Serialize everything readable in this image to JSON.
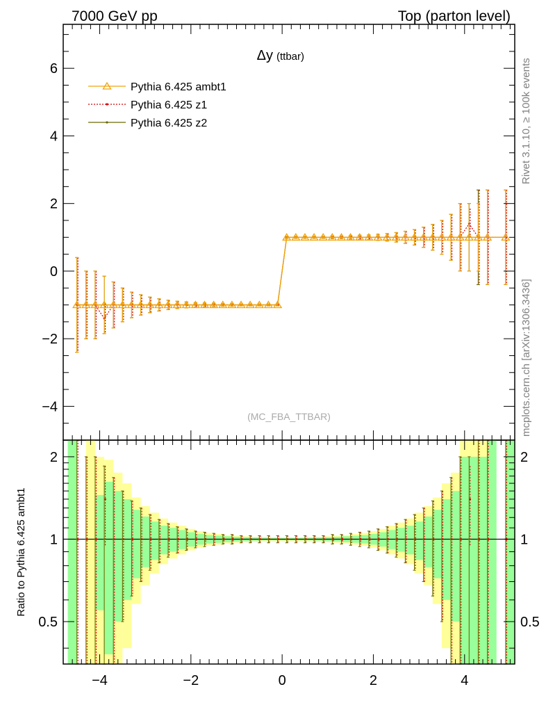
{
  "header": {
    "left": "7000 GeV pp",
    "right": "Top (parton level)"
  },
  "side": {
    "rivet": "Rivet 3.1.10, ≥ 100k events",
    "mcplots": "mcplots.cern.ch [arXiv:1306.3436]"
  },
  "chart_data": [
    {
      "type": "line",
      "title": "Δy",
      "subtitle": "(ttbar)",
      "analysis": "(MC_FBA_TTBAR)",
      "xlabel": "",
      "ylabel": "",
      "xlim": [
        -4.8,
        5.1
      ],
      "ylim": [
        -5.0,
        7.3
      ],
      "xticks": [
        -4,
        -2,
        0,
        2,
        4
      ],
      "yticks": [
        -4,
        -2,
        0,
        2,
        4,
        6
      ],
      "ytick_labels": [
        "−4",
        "−2",
        "0",
        "2",
        "4",
        "6"
      ],
      "legend_position": "top-left",
      "x": [
        -4.5,
        -4.3,
        -4.1,
        -3.9,
        -3.7,
        -3.5,
        -3.3,
        -3.1,
        -2.9,
        -2.7,
        -2.5,
        -2.3,
        -2.1,
        -1.9,
        -1.7,
        -1.5,
        -1.3,
        -1.1,
        -0.9,
        -0.7,
        -0.5,
        -0.3,
        -0.1,
        0.1,
        0.3,
        0.5,
        0.7,
        0.9,
        1.1,
        1.3,
        1.5,
        1.7,
        1.9,
        2.1,
        2.3,
        2.5,
        2.7,
        2.9,
        3.1,
        3.3,
        3.5,
        3.7,
        3.9,
        4.1,
        4.3,
        4.5,
        4.9
      ],
      "series": [
        {
          "name": "Pythia 6.425 ambt1",
          "color": "#f0a30a",
          "marker": "triangle",
          "values": [
            -1,
            -1,
            -1,
            -1,
            -1,
            -1,
            -1,
            -1,
            -1,
            -1,
            -1,
            -1,
            -1,
            -1,
            -1,
            -1,
            -1,
            -1,
            -1,
            -1,
            -1,
            -1,
            -1,
            1,
            1,
            1,
            1,
            1,
            1,
            1,
            1,
            1,
            1,
            1,
            1,
            1,
            1,
            1,
            1,
            1,
            1,
            1,
            1,
            1,
            1,
            1,
            1
          ],
          "errors": [
            1.4,
            1.0,
            1.0,
            0.85,
            0.68,
            0.5,
            0.38,
            0.3,
            0.23,
            0.18,
            0.14,
            0.11,
            0.09,
            0.07,
            0.06,
            0.05,
            0.04,
            0.04,
            0.03,
            0.03,
            0.03,
            0.03,
            0.03,
            0.03,
            0.03,
            0.03,
            0.03,
            0.03,
            0.04,
            0.04,
            0.05,
            0.06,
            0.07,
            0.09,
            0.11,
            0.14,
            0.18,
            0.23,
            0.3,
            0.38,
            0.5,
            0.68,
            1.0,
            1.0,
            1.0,
            1.4,
            1.4
          ]
        },
        {
          "name": "Pythia 6.425 z1",
          "color": "#d40000",
          "marker": "dot",
          "values": [
            -1,
            -1,
            -1,
            -1.4,
            -1,
            -1,
            -1,
            -1,
            -1,
            -1,
            -1,
            -1,
            -1,
            -1,
            -1,
            -1,
            -1,
            -1,
            -1,
            -1,
            -1,
            -1,
            -1,
            1,
            1,
            1,
            1,
            1,
            1,
            1,
            1,
            1,
            1,
            1,
            1,
            1,
            1,
            1,
            1,
            1,
            1,
            1,
            1,
            1.4,
            1,
            1,
            1
          ],
          "errors": [
            1.4,
            1.0,
            1.0,
            0.45,
            0.68,
            0.5,
            0.38,
            0.3,
            0.23,
            0.18,
            0.14,
            0.11,
            0.09,
            0.07,
            0.06,
            0.05,
            0.04,
            0.04,
            0.03,
            0.03,
            0.03,
            0.03,
            0.03,
            0.03,
            0.03,
            0.03,
            0.03,
            0.03,
            0.04,
            0.04,
            0.05,
            0.06,
            0.07,
            0.09,
            0.11,
            0.14,
            0.18,
            0.23,
            0.3,
            0.38,
            0.5,
            0.68,
            1.0,
            0.45,
            1.4,
            1.4,
            1.4
          ]
        },
        {
          "name": "Pythia 6.425 z2",
          "color": "#6b6b00",
          "marker": "dot",
          "values": [
            -1,
            -1,
            -1,
            -1,
            -1,
            -1,
            -1,
            -1,
            -1,
            -1,
            -1,
            -1,
            -1,
            -1,
            -1,
            -1,
            -1,
            -1,
            -1,
            -1,
            -1,
            -1,
            -1,
            1,
            1,
            1,
            1,
            1,
            1,
            1,
            1,
            1,
            1,
            1,
            1,
            1,
            1,
            1,
            1,
            1,
            1,
            1,
            1,
            1,
            1,
            1,
            1
          ],
          "errors": [
            1.4,
            1.0,
            1.0,
            0.85,
            0.68,
            0.5,
            0.38,
            0.3,
            0.23,
            0.18,
            0.14,
            0.11,
            0.09,
            0.07,
            0.06,
            0.05,
            0.04,
            0.04,
            0.03,
            0.03,
            0.03,
            0.03,
            0.03,
            0.03,
            0.03,
            0.03,
            0.03,
            0.03,
            0.04,
            0.04,
            0.05,
            0.06,
            0.07,
            0.09,
            0.11,
            0.14,
            0.18,
            0.23,
            0.3,
            0.38,
            0.5,
            0.68,
            1.0,
            1.0,
            1.4,
            1.4,
            1.4
          ]
        }
      ]
    },
    {
      "type": "line",
      "title": "",
      "ylabel": "Ratio to Pythia 6.425 ambt1",
      "xlim": [
        -4.8,
        5.1
      ],
      "ylim": [
        0.35,
        2.3
      ],
      "yscale": "log",
      "xticks": [
        -4,
        -2,
        0,
        2,
        4
      ],
      "xtick_labels": [
        "−4",
        "−2",
        "0",
        "2",
        "4"
      ],
      "yticks": [
        0.5,
        1,
        2
      ],
      "ytick_labels": [
        "0.5",
        "1",
        "2"
      ],
      "bands": {
        "yellow_color": "#ffff99",
        "green_color": "#99ff99",
        "edges": [
          -4.7,
          -4.5,
          -4.3,
          -4.1,
          -3.9,
          -3.7,
          -3.5,
          -3.3,
          -3.1,
          -2.9,
          -2.7,
          -2.5,
          -2.3,
          -2.1,
          -1.9,
          -1.7,
          -1.5,
          -1.3,
          -1.1,
          -0.9,
          -0.7,
          -0.5,
          -0.3,
          -0.1,
          0.1,
          0.3,
          0.5,
          0.7,
          0.9,
          1.1,
          1.3,
          1.5,
          1.7,
          1.9,
          2.1,
          2.3,
          2.5,
          2.7,
          2.9,
          3.1,
          3.3,
          3.5,
          3.7,
          3.9,
          4.1,
          4.3,
          4.5,
          4.7,
          4.9,
          5.1
        ],
        "yellow_half": [
          0.0,
          0.0,
          1.4,
          1.0,
          0.95,
          0.75,
          0.6,
          0.42,
          0.32,
          0.25,
          0.19,
          0.15,
          0.12,
          0.09,
          0.07,
          0.055,
          0.045,
          0.035,
          0.03,
          0.025,
          0.02,
          0.018,
          0.016,
          0.015,
          0.015,
          0.016,
          0.018,
          0.02,
          0.025,
          0.03,
          0.035,
          0.045,
          0.055,
          0.07,
          0.09,
          0.12,
          0.15,
          0.19,
          0.25,
          0.32,
          0.42,
          0.6,
          0.75,
          1.4,
          1.4,
          1.4,
          0.0,
          0.0,
          0.0
        ],
        "green_half": [
          1.4,
          0.0,
          0.0,
          0.45,
          0.62,
          0.5,
          0.4,
          0.28,
          0.21,
          0.16,
          0.12,
          0.1,
          0.08,
          0.06,
          0.045,
          0.035,
          0.03,
          0.025,
          0.02,
          0.016,
          0.013,
          0.011,
          0.01,
          0.01,
          0.01,
          0.01,
          0.011,
          0.013,
          0.016,
          0.02,
          0.025,
          0.03,
          0.035,
          0.045,
          0.06,
          0.08,
          0.1,
          0.12,
          0.16,
          0.21,
          0.28,
          0.4,
          0.5,
          1.0,
          1.0,
          1.0,
          1.4,
          0.0,
          1.4
        ]
      }
    }
  ]
}
